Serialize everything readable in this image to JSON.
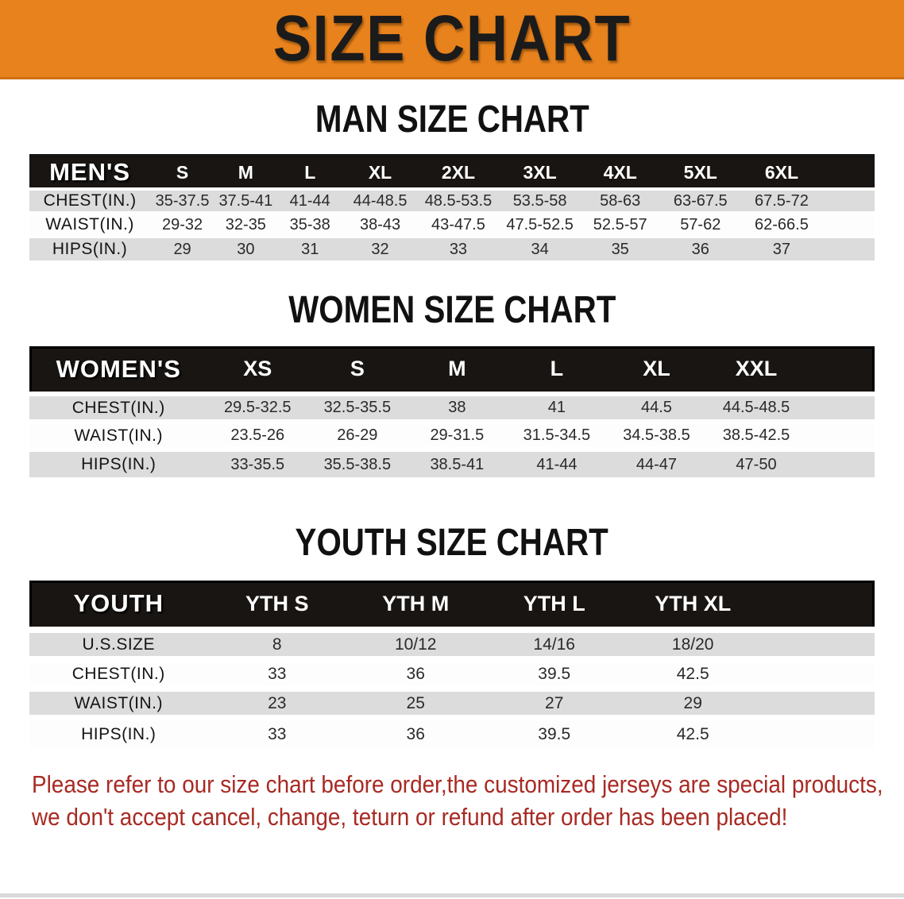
{
  "banner": {
    "title": "SIZE CHART",
    "bg_color": "#e8821c",
    "text_color": "#1b1b1b"
  },
  "sections": [
    {
      "id": "men",
      "title": "MAN SIZE CHART",
      "table": {
        "label": "MEN'S",
        "columns": [
          "S",
          "M",
          "L",
          "XL",
          "2XL",
          "3XL",
          "4XL",
          "5XL",
          "6XL"
        ],
        "rows": [
          {
            "label": "CHEST(IN.)",
            "values": [
              "35-37.5",
              "37.5-41",
              "41-44",
              "44-48.5",
              "48.5-53.5",
              "53.5-58",
              "58-63",
              "63-67.5",
              "67.5-72"
            ]
          },
          {
            "label": "WAIST(IN.)",
            "values": [
              "29-32",
              "32-35",
              "35-38",
              "38-43",
              "43-47.5",
              "47.5-52.5",
              "52.5-57",
              "57-62",
              "62-66.5"
            ]
          },
          {
            "label": "HIPS(IN.)",
            "values": [
              "29",
              "30",
              "31",
              "32",
              "33",
              "34",
              "35",
              "36",
              "37"
            ]
          }
        ]
      }
    },
    {
      "id": "women",
      "title": "WOMEN SIZE CHART",
      "table": {
        "label": "WOMEN'S",
        "columns": [
          "XS",
          "S",
          "M",
          "L",
          "XL",
          "XXL"
        ],
        "rows": [
          {
            "label": "CHEST(IN.)",
            "values": [
              "29.5-32.5",
              "32.5-35.5",
              "38",
              "41",
              "44.5",
              "44.5-48.5"
            ]
          },
          {
            "label": "WAIST(IN.)",
            "values": [
              "23.5-26",
              "26-29",
              "29-31.5",
              "31.5-34.5",
              "34.5-38.5",
              "38.5-42.5"
            ]
          },
          {
            "label": "HIPS(IN.)",
            "values": [
              "33-35.5",
              "35.5-38.5",
              "38.5-41",
              "41-44",
              "44-47",
              "47-50"
            ]
          }
        ]
      }
    },
    {
      "id": "youth",
      "title": "YOUTH SIZE CHART",
      "table": {
        "label": "YOUTH",
        "columns": [
          "YTH S",
          "YTH M",
          "YTH L",
          "YTH XL"
        ],
        "rows": [
          {
            "label": "U.S.SIZE",
            "values": [
              "8",
              "10/12",
              "14/16",
              "18/20"
            ]
          },
          {
            "label": "CHEST(IN.)",
            "values": [
              "33",
              "36",
              "39.5",
              "42.5"
            ]
          },
          {
            "label": "WAIST(IN.)",
            "values": [
              "23",
              "25",
              "27",
              "29"
            ]
          },
          {
            "label": "HIPS(IN.)",
            "values": [
              "33",
              "36",
              "39.5",
              "42.5"
            ]
          }
        ]
      }
    }
  ],
  "disclaimer": {
    "line1": "Please refer to our size chart before order,the customized jerseys are special products,",
    "line2": "we don't accept cancel, change, teturn or refund after order has been placed!",
    "text_color": "#a82a23"
  },
  "colors": {
    "header_bar": "#181512",
    "row_shade": "#dcdcdc",
    "banner_orange": "#e8821c"
  }
}
